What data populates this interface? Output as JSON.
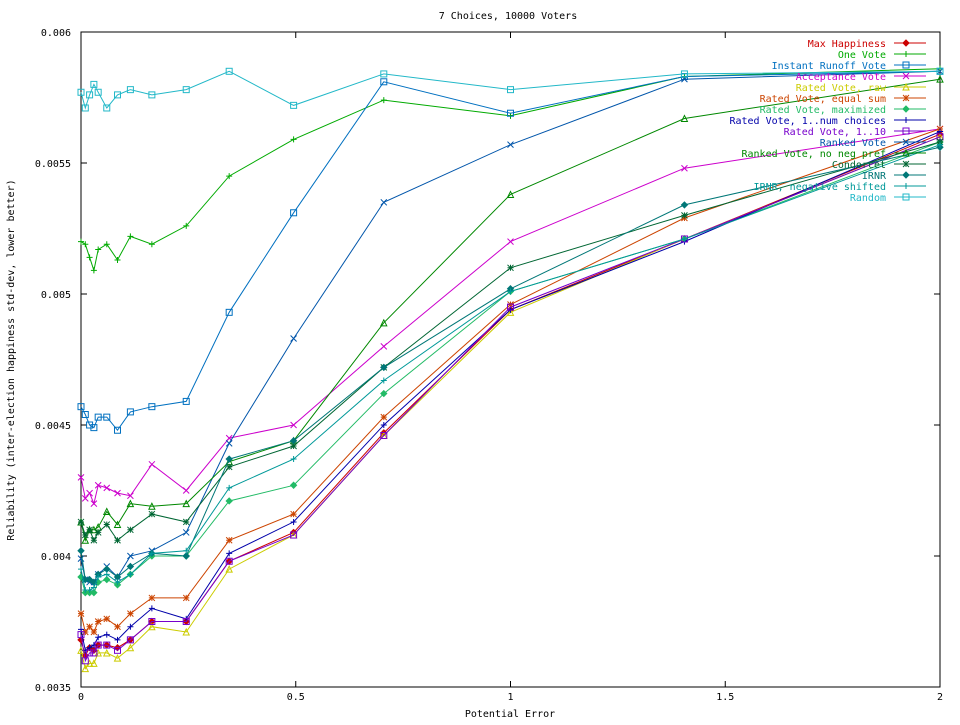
{
  "chart_data": {
    "type": "line",
    "title": "7 Choices, 10000 Voters",
    "xlabel": "Potential Error",
    "ylabel": "Reliability (inter-election happiness std-dev, lower better)",
    "xlim": [
      0,
      2
    ],
    "ylim": [
      0.0035,
      0.006
    ],
    "x_ticks": [
      0,
      0.5,
      1,
      1.5,
      2
    ],
    "x_tick_labels": [
      "0",
      "0.5",
      "1",
      "1.5",
      "2"
    ],
    "y_ticks": [
      0.0035,
      0.004,
      0.0045,
      0.005,
      0.0055,
      0.006
    ],
    "y_tick_labels": [
      "0.0035",
      "0.004",
      "0.0045",
      "0.005",
      "0.0055",
      "0.006"
    ],
    "grid": false,
    "legend_position": "top-right",
    "x": [
      0,
      0.01,
      0.02,
      0.03,
      0.04,
      0.06,
      0.085,
      0.115,
      0.165,
      0.245,
      0.345,
      0.495,
      0.705,
      1.0,
      1.405,
      2.0
    ],
    "series": [
      {
        "name": "Max Happiness",
        "color": "#cc0000",
        "marker": "diamond",
        "values": [
          0.00368,
          0.00362,
          0.00365,
          0.00364,
          0.00366,
          0.00366,
          0.00365,
          0.00368,
          0.00375,
          0.00375,
          0.00398,
          0.00409,
          0.00447,
          0.00494,
          0.00521,
          0.00561
        ]
      },
      {
        "name": "One Vote",
        "color": "#00aa00",
        "marker": "plus",
        "values": [
          0.0052,
          0.00519,
          0.00514,
          0.00509,
          0.00517,
          0.00519,
          0.00513,
          0.00522,
          0.00519,
          0.00526,
          0.00545,
          0.00559,
          0.00574,
          0.00568,
          0.00583,
          0.00586
        ]
      },
      {
        "name": "Instant Runoff Vote",
        "color": "#0070c0",
        "marker": "square",
        "values": [
          0.00457,
          0.00454,
          0.0045,
          0.00449,
          0.00453,
          0.00453,
          0.00448,
          0.00455,
          0.00457,
          0.00459,
          0.00493,
          0.00531,
          0.00581,
          0.00569,
          0.00583,
          0.00585
        ]
      },
      {
        "name": "Acceptance Vote",
        "color": "#cc00cc",
        "marker": "x",
        "values": [
          0.0043,
          0.00422,
          0.00424,
          0.0042,
          0.00427,
          0.00426,
          0.00424,
          0.00423,
          0.00435,
          0.00425,
          0.00445,
          0.0045,
          0.0048,
          0.0052,
          0.00548,
          0.00563
        ]
      },
      {
        "name": "Rated Vote, raw",
        "color": "#cccc00",
        "marker": "triangle",
        "values": [
          0.00364,
          0.00357,
          0.00359,
          0.00359,
          0.00363,
          0.00363,
          0.00361,
          0.00365,
          0.00373,
          0.00371,
          0.00395,
          0.00408,
          0.00446,
          0.00493,
          0.00521,
          0.0056
        ]
      },
      {
        "name": "Rated Vote, equal sum",
        "color": "#cc4400",
        "marker": "star",
        "values": [
          0.00378,
          0.00371,
          0.00373,
          0.00371,
          0.00375,
          0.00376,
          0.00373,
          0.00378,
          0.00384,
          0.00384,
          0.00406,
          0.00416,
          0.00453,
          0.00496,
          0.00529,
          0.00563
        ]
      },
      {
        "name": "Rated Vote, maximized",
        "color": "#22bb66",
        "marker": "diamond",
        "values": [
          0.00392,
          0.00386,
          0.00386,
          0.00386,
          0.0039,
          0.00391,
          0.00389,
          0.00393,
          0.004,
          0.004,
          0.00421,
          0.00427,
          0.00462,
          0.00501,
          0.00521,
          0.00558
        ]
      },
      {
        "name": "Rated Vote, 1..num choices",
        "color": "#0000aa",
        "marker": "plus",
        "values": [
          0.00372,
          0.00364,
          0.00365,
          0.00366,
          0.00369,
          0.0037,
          0.00368,
          0.00373,
          0.0038,
          0.00376,
          0.00401,
          0.00413,
          0.0045,
          0.00494,
          0.0052,
          0.00562
        ]
      },
      {
        "name": "Rated Vote, 1..10",
        "color": "#7700cc",
        "marker": "square",
        "values": [
          0.0037,
          0.0036,
          0.00363,
          0.00363,
          0.00366,
          0.00366,
          0.00364,
          0.00368,
          0.00375,
          0.00375,
          0.00398,
          0.00408,
          0.00446,
          0.00495,
          0.00521,
          0.0056
        ]
      },
      {
        "name": "Ranked Vote",
        "color": "#0055aa",
        "marker": "x",
        "values": [
          0.00399,
          0.00391,
          0.0039,
          0.0039,
          0.00393,
          0.00396,
          0.00392,
          0.004,
          0.00402,
          0.00409,
          0.00443,
          0.00483,
          0.00535,
          0.00557,
          0.00582,
          0.00585
        ]
      },
      {
        "name": "Ranked Vote, no neg pref",
        "color": "#008800",
        "marker": "triangle",
        "values": [
          0.00413,
          0.00406,
          0.0041,
          0.0041,
          0.00411,
          0.00417,
          0.00412,
          0.0042,
          0.00419,
          0.0042,
          0.00436,
          0.00444,
          0.00489,
          0.00538,
          0.00567,
          0.00582
        ]
      },
      {
        "name": "Condorcet",
        "color": "#006633",
        "marker": "star",
        "values": [
          0.00413,
          0.00408,
          0.0041,
          0.00406,
          0.00409,
          0.00412,
          0.00406,
          0.0041,
          0.00416,
          0.00413,
          0.00434,
          0.00442,
          0.00472,
          0.0051,
          0.0053,
          0.00558
        ]
      },
      {
        "name": "IRNR",
        "color": "#007777",
        "marker": "diamond",
        "values": [
          0.00402,
          0.00391,
          0.00391,
          0.0039,
          0.00393,
          0.00395,
          0.00392,
          0.00396,
          0.00401,
          0.004,
          0.00437,
          0.00444,
          0.00472,
          0.00502,
          0.00534,
          0.00556
        ]
      },
      {
        "name": "IRNR, negative shifted",
        "color": "#009999",
        "marker": "plus",
        "values": [
          0.00395,
          0.00387,
          0.00387,
          0.00388,
          0.00392,
          0.00393,
          0.0039,
          0.00393,
          0.00401,
          0.00402,
          0.00426,
          0.00437,
          0.00467,
          0.00501,
          0.00521,
          0.00557
        ]
      },
      {
        "name": "Random",
        "color": "#22b8c8",
        "marker": "square",
        "values": [
          0.00577,
          0.00571,
          0.00576,
          0.0058,
          0.00577,
          0.00571,
          0.00576,
          0.00578,
          0.00576,
          0.00578,
          0.00585,
          0.00572,
          0.00584,
          0.00578,
          0.00584,
          0.00585
        ]
      }
    ]
  }
}
